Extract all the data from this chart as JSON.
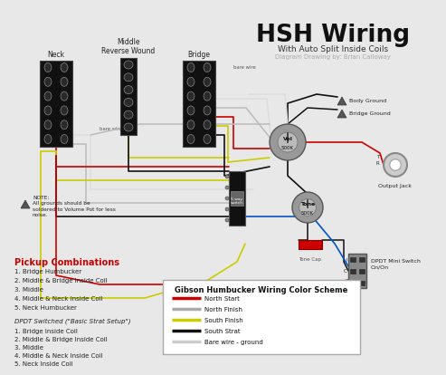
{
  "title": "HSH Wiring",
  "subtitle": "With Auto Split Inside Coils",
  "subtitle2": "Diagram Drawing by: Brian Calloway",
  "bg_color": "#e8e8e8",
  "title_color": "#111111",
  "pickup_section_title": "Pickup Combinations",
  "pickup_combinations": [
    "1. Bridge Humbucker",
    "2. Middle & Bridge Inside Coil",
    "3. Middle",
    "4. Middle & Neck Inside Coil",
    "5. Neck Humbucker"
  ],
  "dpdt_title": "DPDT Switched (\"Basic Strat Setup\")",
  "dpdt_combinations": [
    "1. Bridge Inside Coil",
    "2. Middle & Bridge Inside Coil",
    "3. Middle",
    "4. Middle & Neck Inside Coil",
    "5. Neck Inside Coil"
  ],
  "legend_title": "Gibson Humbucker Wiring Color Scheme",
  "legend_items": [
    {
      "label": "North Start",
      "color": "#cc0000"
    },
    {
      "label": "North Finish",
      "color": "#aaaaaa"
    },
    {
      "label": "South Finish",
      "color": "#cccc00"
    },
    {
      "label": "South Strat",
      "color": "#111111"
    },
    {
      "label": "Bare wire - ground",
      "color": "#cccccc"
    }
  ],
  "note_text": "NOTE:\nAll grounds should be\nsoldered to Volume Pot for less\nnoise.",
  "wire_red": "#cc0000",
  "wire_black": "#111111",
  "wire_yellow": "#cccc00",
  "wire_gray": "#bbbbbb",
  "wire_white": "#dddddd",
  "wire_blue": "#0055cc",
  "pot_color": "#999999",
  "pot_inner": "#bbbbbb",
  "switch_color": "#111111",
  "jack_color": "#cccccc",
  "dpdt_color": "#888888"
}
